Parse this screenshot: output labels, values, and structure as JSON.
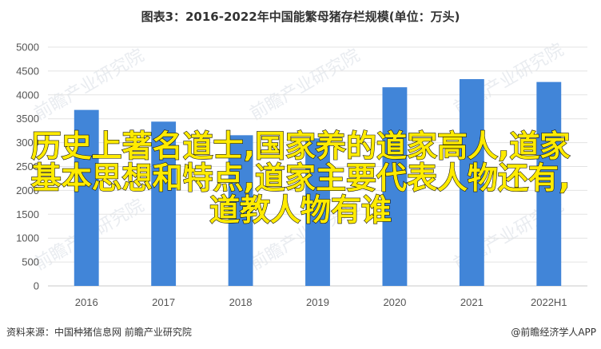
{
  "chart_data": {
    "type": "bar",
    "title": "图表3：2016-2022年中国能繁母猪存栏规模(单位：万头)",
    "categories": [
      "2016",
      "2017",
      "2018",
      "2019",
      "2020",
      "2021",
      "2022H1"
    ],
    "values": [
      3685,
      3440,
      3155,
      3090,
      4160,
      4330,
      4270
    ],
    "ylim": [
      0,
      5000
    ],
    "yticks": [
      0,
      500,
      1000,
      1500,
      2000,
      2500,
      3000,
      3500,
      4000,
      4500,
      5000
    ],
    "grid": true,
    "bar_color": "#4185d8"
  },
  "footer": {
    "source": "资料来源：中国种猪信息网 前瞻产业研究院",
    "brand": "@前瞻经济学人APP"
  },
  "overlay": {
    "lines": [
      "历史上著名道士,国家养的道家高人,道家",
      "基本思想和特点,道家主要代表人物还有,",
      "道教人物有谁"
    ],
    "color": "#ffeb00"
  },
  "watermark": {
    "text": "前瞻产业研究院"
  }
}
